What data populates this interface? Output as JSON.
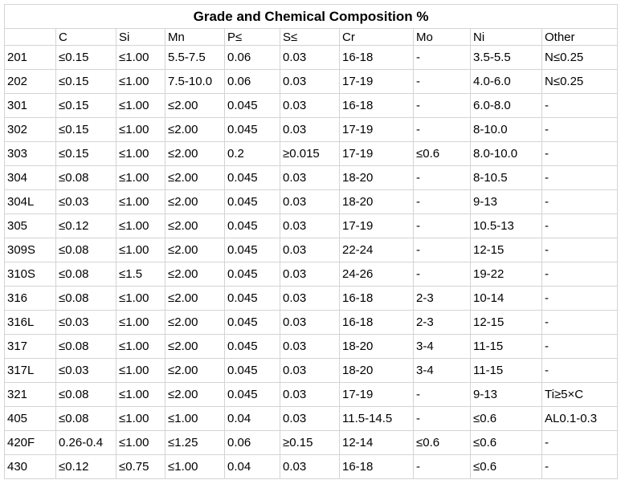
{
  "title": "Grade and Chemical Composition %",
  "columns": [
    "",
    "C",
    "Si",
    "Mn",
    "P≤",
    "S≤",
    "Cr",
    "Mo",
    "Ni",
    "Other"
  ],
  "rows": [
    [
      "201",
      "≤0.15",
      "≤1.00",
      "5.5-7.5",
      "0.06",
      "0.03",
      "16-18",
      "-",
      "3.5-5.5",
      "N≤0.25"
    ],
    [
      "202",
      "≤0.15",
      "≤1.00",
      "7.5-10.0",
      "0.06",
      "0.03",
      "17-19",
      "-",
      "4.0-6.0",
      "N≤0.25"
    ],
    [
      "301",
      "≤0.15",
      "≤1.00",
      "≤2.00",
      "0.045",
      "0.03",
      "16-18",
      "-",
      "6.0-8.0",
      "-"
    ],
    [
      "302",
      "≤0.15",
      "≤1.00",
      "≤2.00",
      "0.045",
      "0.03",
      "17-19",
      "-",
      "8-10.0",
      "-"
    ],
    [
      "303",
      "≤0.15",
      "≤1.00",
      "≤2.00",
      "0.2",
      "≥0.015",
      "17-19",
      "≤0.6",
      "8.0-10.0",
      "-"
    ],
    [
      "304",
      "≤0.08",
      "≤1.00",
      "≤2.00",
      "0.045",
      "0.03",
      "18-20",
      "-",
      "8-10.5",
      "-"
    ],
    [
      "304L",
      "≤0.03",
      "≤1.00",
      "≤2.00",
      "0.045",
      "0.03",
      "18-20",
      "-",
      "9-13",
      "-"
    ],
    [
      "305",
      "≤0.12",
      "≤1.00",
      "≤2.00",
      "0.045",
      "0.03",
      "17-19",
      "-",
      "10.5-13",
      "-"
    ],
    [
      "309S",
      "≤0.08",
      "≤1.00",
      "≤2.00",
      "0.045",
      "0.03",
      "22-24",
      "-",
      "12-15",
      "-"
    ],
    [
      "310S",
      "≤0.08",
      "≤1.5",
      "≤2.00",
      "0.045",
      "0.03",
      "24-26",
      "-",
      "19-22",
      "-"
    ],
    [
      "316",
      "≤0.08",
      "≤1.00",
      "≤2.00",
      "0.045",
      "0.03",
      "16-18",
      "2-3",
      "10-14",
      "-"
    ],
    [
      "316L",
      "≤0.03",
      "≤1.00",
      "≤2.00",
      "0.045",
      "0.03",
      "16-18",
      "2-3",
      "12-15",
      "-"
    ],
    [
      "317",
      "≤0.08",
      "≤1.00",
      "≤2.00",
      "0.045",
      "0.03",
      "18-20",
      "3-4",
      "11-15",
      "-"
    ],
    [
      "317L",
      "≤0.03",
      "≤1.00",
      "≤2.00",
      "0.045",
      "0.03",
      "18-20",
      "3-4",
      "11-15",
      "-"
    ],
    [
      "321",
      "≤0.08",
      "≤1.00",
      "≤2.00",
      "0.045",
      "0.03",
      "17-19",
      "-",
      "9-13",
      "Ti≥5×C"
    ],
    [
      "405",
      "≤0.08",
      "≤1.00",
      "≤1.00",
      "0.04",
      "0.03",
      "11.5-14.5",
      "-",
      "≤0.6",
      "AL0.1-0.3"
    ],
    [
      "420F",
      "0.26-0.4",
      "≤1.00",
      "≤1.25",
      "0.06",
      "≥0.15",
      "12-14",
      "≤0.6",
      "≤0.6",
      "-"
    ],
    [
      "430",
      "≤0.12",
      "≤0.75",
      "≤1.00",
      "0.04",
      "0.03",
      "16-18",
      "-",
      "≤0.6",
      " -"
    ]
  ]
}
